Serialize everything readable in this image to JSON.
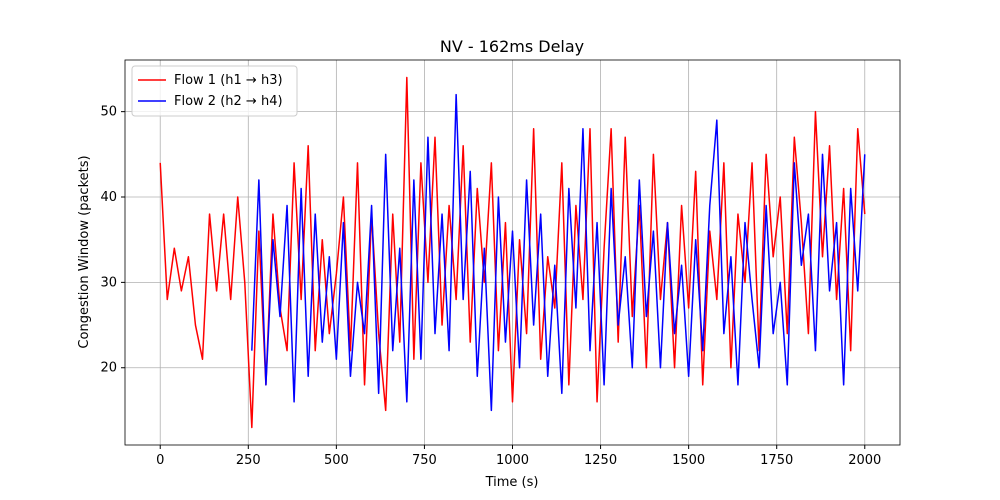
{
  "chart_data": {
    "type": "line",
    "title": "NV - 162ms Delay",
    "x_label": "Time (s)",
    "y_label": "Congestion Window (packets)",
    "x": [
      0,
      20,
      40,
      60,
      80,
      100,
      120,
      140,
      160,
      180,
      200,
      220,
      240,
      260,
      280,
      300,
      320,
      340,
      360,
      380,
      400,
      420,
      440,
      460,
      480,
      500,
      520,
      540,
      560,
      580,
      600,
      620,
      640,
      660,
      680,
      700,
      720,
      740,
      760,
      780,
      800,
      820,
      840,
      860,
      880,
      900,
      920,
      940,
      960,
      980,
      1000,
      1020,
      1040,
      1060,
      1080,
      1100,
      1120,
      1140,
      1160,
      1180,
      1200,
      1220,
      1240,
      1260,
      1280,
      1300,
      1320,
      1340,
      1360,
      1380,
      1400,
      1420,
      1440,
      1460,
      1480,
      1500,
      1520,
      1540,
      1560,
      1580,
      1600,
      1620,
      1640,
      1660,
      1680,
      1700,
      1720,
      1740,
      1760,
      1780,
      1800,
      1820,
      1840,
      1860,
      1880,
      1900,
      1920,
      1940,
      1960,
      1980,
      2000
    ],
    "series": [
      {
        "name": "Flow 1 (h1 → h3)",
        "color": "#ff0000",
        "values": [
          44,
          28,
          34,
          29,
          33,
          25,
          21,
          38,
          29,
          38,
          28,
          40,
          30,
          13,
          36,
          18,
          38,
          27,
          22,
          44,
          28,
          46,
          22,
          35,
          24,
          31,
          40,
          22,
          44,
          18,
          38,
          24,
          15,
          38,
          23,
          54,
          21,
          44,
          30,
          47,
          25,
          39,
          28,
          46,
          23,
          41,
          30,
          44,
          22,
          37,
          16,
          35,
          24,
          48,
          21,
          33,
          27,
          44,
          18,
          39,
          28,
          48,
          16,
          34,
          48,
          23,
          47,
          26,
          39,
          20,
          45,
          28,
          37,
          20,
          39,
          27,
          43,
          18,
          36,
          28,
          44,
          20,
          38,
          30,
          44,
          22,
          45,
          33,
          40,
          24,
          47,
          37,
          24,
          50,
          33,
          46,
          28,
          41,
          22,
          48,
          38
        ]
      },
      {
        "name": "Flow 2 (h2 → h4)",
        "color": "#0000ff",
        "values": [
          null,
          null,
          null,
          null,
          null,
          null,
          null,
          null,
          null,
          null,
          null,
          null,
          null,
          22,
          42,
          18,
          35,
          26,
          39,
          16,
          41,
          19,
          38,
          23,
          33,
          21,
          37,
          19,
          30,
          24,
          39,
          17,
          45,
          22,
          34,
          16,
          42,
          21,
          47,
          24,
          38,
          22,
          52,
          28,
          43,
          19,
          34,
          15,
          40,
          23,
          36,
          20,
          42,
          25,
          38,
          19,
          32,
          17,
          41,
          27,
          48,
          22,
          37,
          18,
          41,
          25,
          33,
          20,
          42,
          26,
          36,
          20,
          37,
          24,
          32,
          19,
          35,
          22,
          39,
          49,
          24,
          33,
          18,
          37,
          28,
          20,
          39,
          24,
          30,
          18,
          44,
          32,
          38,
          22,
          45,
          29,
          37,
          18,
          41,
          29,
          45
        ]
      }
    ],
    "xlim": [
      -100,
      2100
    ],
    "ylim": [
      10.95,
      56.05
    ],
    "xticks": [
      0,
      250,
      500,
      750,
      1000,
      1250,
      1500,
      1750,
      2000
    ],
    "yticks": [
      20,
      30,
      40,
      50
    ],
    "grid": true,
    "legend": "upper left"
  }
}
